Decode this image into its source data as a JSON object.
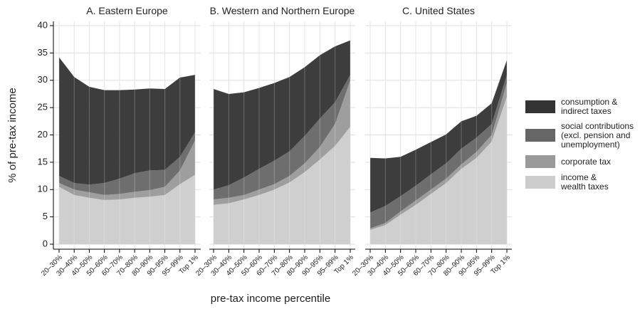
{
  "chart_data": [
    {
      "type": "area",
      "title": "A. Eastern Europe",
      "ylabel": "% of pre-tax income",
      "categories": [
        "20–30%",
        "30–40%",
        "40–50%",
        "50–60%",
        "60–70%",
        "70–80%",
        "80–90%",
        "90–95%",
        "95–99%",
        "Top 1%"
      ],
      "ylim": [
        0,
        40
      ],
      "yticks": [
        0,
        5,
        10,
        15,
        20,
        25,
        30,
        35,
        40
      ],
      "grid": true,
      "series": [
        {
          "name": "income &\nwealth taxes",
          "color": "#cccccc",
          "values": [
            10.5,
            9,
            8.5,
            8.1,
            8.2,
            8.5,
            8.7,
            9,
            11,
            12.7
          ]
        },
        {
          "name": "corporate tax",
          "color": "#999999",
          "values": [
            0.7,
            1,
            1,
            0.9,
            1,
            1.1,
            1.2,
            1.5,
            2.5,
            6.3
          ]
        },
        {
          "name": "social contributions\n(excl. pension and\nunemployment)",
          "color": "#666666",
          "values": [
            1.3,
            1.2,
            1.4,
            2.2,
            2.8,
            3.4,
            3.6,
            3.1,
            2.5,
            1.5
          ]
        },
        {
          "name": "consumption &\nindirect taxes",
          "color": "#333333",
          "values": [
            21.7,
            19.4,
            17.9,
            17,
            16.2,
            15.3,
            15,
            14.8,
            14.5,
            10.5
          ]
        }
      ]
    },
    {
      "type": "area",
      "title": "B. Western and Northern Europe",
      "xlabel": "pre-tax income percentile",
      "categories": [
        "20–30%",
        "30–40%",
        "40–50%",
        "50–60%",
        "60–70%",
        "70–80%",
        "80–90%",
        "90–95%",
        "95–99%",
        "Top 1%"
      ],
      "ylim": [
        0,
        40
      ],
      "grid": true,
      "series": [
        {
          "color": "#cccccc",
          "values": [
            7.2,
            7.5,
            8.2,
            9,
            10,
            11.3,
            13.2,
            15.5,
            18,
            21.5
          ]
        },
        {
          "color": "#999999",
          "values": [
            1,
            1,
            0.8,
            1,
            1,
            1.2,
            1.6,
            2.3,
            4,
            8.5
          ]
        },
        {
          "color": "#666666",
          "values": [
            1.8,
            2.3,
            3.2,
            3.8,
            4.3,
            4.5,
            5,
            5.2,
            4,
            1
          ]
        },
        {
          "color": "#333333",
          "values": [
            18.4,
            16.7,
            15.6,
            14.8,
            14.2,
            13.6,
            12.6,
            11.6,
            10.2,
            6.3
          ]
        }
      ]
    },
    {
      "type": "area",
      "title": "C. United States",
      "categories": [
        "20–30%",
        "30–40%",
        "40–50%",
        "50–60%",
        "60–70%",
        "70–80%",
        "80–90%",
        "90–95%",
        "95–99%",
        "Top 1%"
      ],
      "ylim": [
        0,
        40
      ],
      "grid": true,
      "series": [
        {
          "color": "#cccccc",
          "values": [
            2.6,
            3.5,
            5.4,
            7.2,
            9.2,
            11.2,
            13.8,
            15.8,
            18.8,
            27
          ]
        },
        {
          "color": "#999999",
          "values": [
            0.3,
            0.4,
            0.6,
            0.8,
            0.8,
            0.8,
            0.8,
            1.1,
            1.2,
            2.5
          ]
        },
        {
          "color": "#666666",
          "values": [
            2.9,
            3.1,
            2.8,
            2.7,
            2.8,
            2.8,
            2.9,
            2.6,
            2,
            1.5
          ]
        },
        {
          "color": "#333333",
          "values": [
            10,
            8.7,
            7.2,
            6.6,
            5.9,
            5.3,
            5,
            4,
            3.8,
            2.7
          ]
        }
      ]
    }
  ]
}
